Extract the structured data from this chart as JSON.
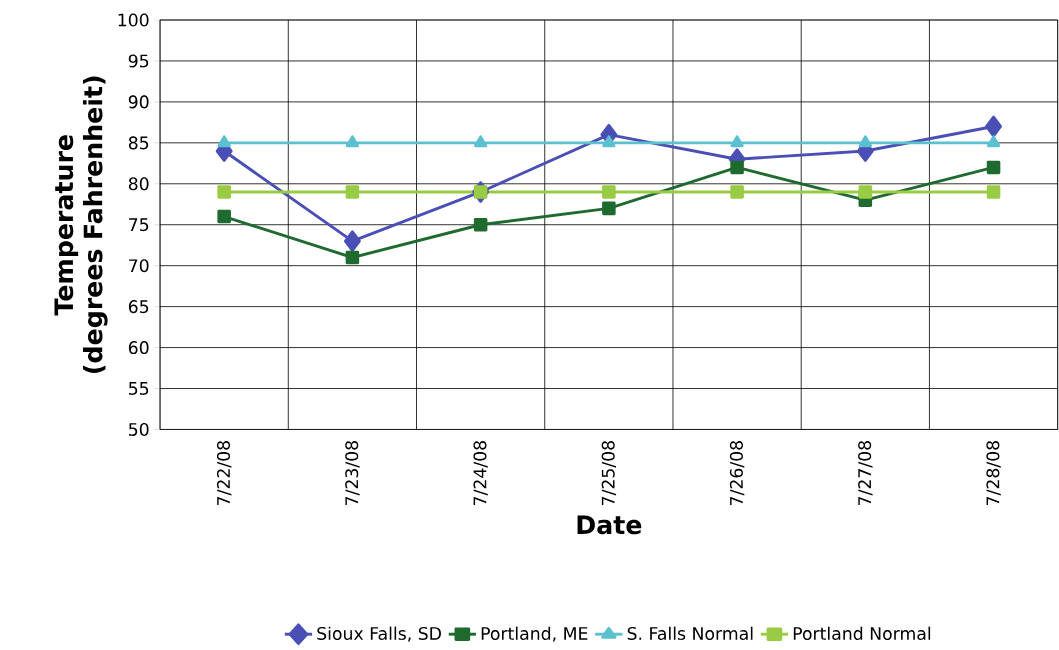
{
  "chart_data": {
    "type": "line",
    "xlabel": "Date",
    "ylabel": "Temperature (degrees Fahrenheit)",
    "categories": [
      "7/22/08",
      "7/23/08",
      "7/24/08",
      "7/25/08",
      "7/26/08",
      "7/27/08",
      "7/28/08"
    ],
    "series": [
      {
        "name": "Sioux Falls, SD",
        "color": "#4a4fb5",
        "marker": "diamond",
        "values": [
          84,
          73,
          79,
          86,
          83,
          84,
          87
        ]
      },
      {
        "name": "Portland, ME",
        "color": "#1f6b2f",
        "marker": "square",
        "values": [
          76,
          71,
          75,
          77,
          82,
          78,
          82
        ]
      },
      {
        "name": "S. Falls Normal",
        "color": "#5bc0d0",
        "marker": "triangle",
        "values": [
          85,
          85,
          85,
          85,
          85,
          85,
          85
        ]
      },
      {
        "name": "Portland Normal",
        "color": "#99cc44",
        "marker": "square",
        "values": [
          79,
          79,
          79,
          79,
          79,
          79,
          79
        ]
      }
    ],
    "ylim": [
      50,
      100
    ],
    "yticks": [
      50,
      55,
      60,
      65,
      70,
      75,
      80,
      85,
      90,
      95,
      100
    ],
    "grid": true,
    "legend": "bottom"
  }
}
